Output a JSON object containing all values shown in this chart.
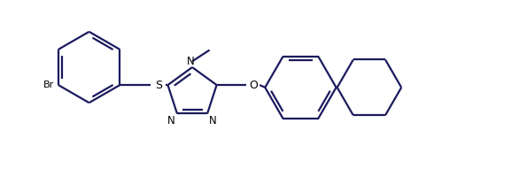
{
  "background_color": "#ffffff",
  "line_color": "#1a1a5e",
  "text_color": "#000000",
  "figsize": [
    5.86,
    1.91
  ],
  "dpi": 100,
  "xlim": [
    0,
    10
  ],
  "ylim": [
    0,
    3.4
  ],
  "r_benz": 0.72,
  "r_cyclo": 0.65,
  "lw": 1.6
}
